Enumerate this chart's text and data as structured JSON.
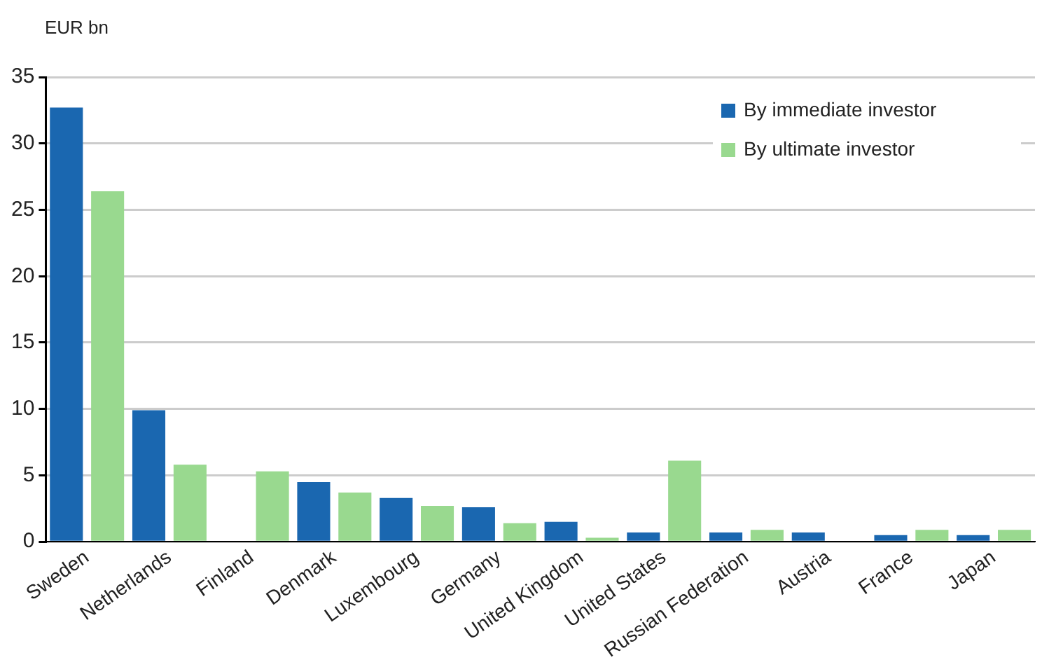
{
  "chart_data": {
    "type": "bar",
    "ylabel": "EUR bn",
    "categories": [
      "Sweden",
      "Netherlands",
      "Finland",
      "Denmark",
      "Luxembourg",
      "Germany",
      "United Kingdom",
      "United States",
      "Russian Federation",
      "Austria",
      "France",
      "Japan"
    ],
    "series": [
      {
        "name": "By immediate investor",
        "color": "#1a67b0",
        "values": [
          32.7,
          9.9,
          null,
          4.5,
          3.3,
          2.6,
          1.5,
          0.7,
          0.7,
          0.7,
          0.5,
          0.5
        ]
      },
      {
        "name": "By ultimate investor",
        "color": "#99d98f",
        "values": [
          26.4,
          5.8,
          5.3,
          3.7,
          2.7,
          1.4,
          0.3,
          6.1,
          0.9,
          null,
          0.9,
          0.9
        ]
      }
    ],
    "ylim": [
      0,
      35
    ],
    "yticks": [
      0,
      5,
      10,
      15,
      20,
      25,
      30,
      35
    ],
    "grid": "y",
    "legend": "top right"
  }
}
